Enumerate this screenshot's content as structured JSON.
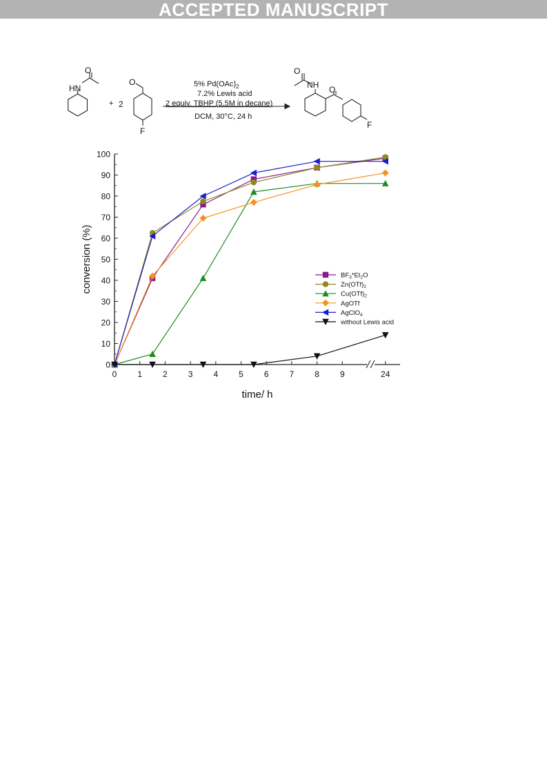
{
  "banner": {
    "text": "ACCEPTED MANUSCRIPT"
  },
  "scheme": {
    "plus": "+",
    "coefficient": "2",
    "reactant1": {
      "nh": "HN",
      "o": "O"
    },
    "reactant2": {
      "o": "O",
      "f": "F"
    },
    "product": {
      "nh": "NH",
      "o1": "O",
      "o2": "O",
      "f": "F"
    },
    "conditions": {
      "catalyst_main": "5% Pd(OAc)",
      "catalyst_sub": "2",
      "lewis_acid": "7.2% Lewis acid",
      "oxidant": "2 equiv. TBHP (5.5M in decane)",
      "solvent_temp": "DCM, 30°C, 24 h"
    }
  },
  "chart_data": {
    "type": "line",
    "xlabel": "time/ h",
    "ylabel": "conversion (%)",
    "ylim": [
      0,
      100
    ],
    "yticks": [
      0,
      10,
      20,
      30,
      40,
      50,
      60,
      70,
      80,
      90,
      100
    ],
    "xticks": [
      {
        "v": 0,
        "label": "0"
      },
      {
        "v": 1,
        "label": "1"
      },
      {
        "v": 2,
        "label": "2"
      },
      {
        "v": 3,
        "label": "3"
      },
      {
        "v": 4,
        "label": "4"
      },
      {
        "v": 5,
        "label": "5"
      },
      {
        "v": 6,
        "label": "6"
      },
      {
        "v": 7,
        "label": "7"
      },
      {
        "v": 8,
        "label": "8"
      },
      {
        "v": 9,
        "label": "9"
      },
      {
        "v": 24,
        "label": "24"
      }
    ],
    "axis_break": "between 9 and 24",
    "legend_position": "right",
    "series": [
      {
        "name": "BF3*Et2O",
        "name_parts": [
          [
            "BF",
            ""
          ],
          [
            "3",
            "sub"
          ],
          [
            "*Et",
            ""
          ],
          [
            "2",
            "sub"
          ],
          [
            "O",
            ""
          ]
        ],
        "color": "#8b1a89",
        "marker": "square",
        "x": [
          0,
          1.5,
          3.5,
          5.5,
          8,
          24
        ],
        "y": [
          0,
          41,
          76,
          88,
          93.5,
          98
        ]
      },
      {
        "name": "Zn(OTf)2",
        "name_parts": [
          [
            "Zn(OTf)",
            ""
          ],
          [
            "2",
            "sub"
          ]
        ],
        "color": "#8a8a1e",
        "marker": "circle",
        "x": [
          0,
          1.5,
          3.5,
          5.5,
          8,
          24
        ],
        "y": [
          0,
          62.5,
          77.5,
          86.5,
          93.5,
          98.5
        ]
      },
      {
        "name": "Cu(OTf)2",
        "name_parts": [
          [
            "Cu(OTf)",
            ""
          ],
          [
            "2",
            "sub"
          ]
        ],
        "color": "#1e8c1e",
        "marker": "triangle-up",
        "x": [
          0,
          1.5,
          3.5,
          5.5,
          8,
          24
        ],
        "y": [
          0,
          5,
          41,
          82,
          86,
          86
        ]
      },
      {
        "name": "AgOTf",
        "name_parts": [
          [
            "AgOTf",
            ""
          ]
        ],
        "color": "#f5921e",
        "marker": "diamond",
        "x": [
          0,
          1.5,
          3.5,
          5.5,
          8,
          24
        ],
        "y": [
          0,
          42,
          69.5,
          77,
          85.5,
          91
        ]
      },
      {
        "name": "AgClO4",
        "name_parts": [
          [
            "AgClO",
            ""
          ],
          [
            "4",
            "sub"
          ]
        ],
        "color": "#1c1ccc",
        "marker": "triangle-left",
        "x": [
          0,
          1.5,
          3.5,
          5.5,
          8,
          24
        ],
        "y": [
          0,
          61,
          80,
          91,
          96.5,
          96.5
        ]
      },
      {
        "name": "without Lewis acid",
        "name_parts": [
          [
            "without Lewis acid",
            ""
          ]
        ],
        "color": "#111111",
        "marker": "triangle-down",
        "x": [
          0,
          1.5,
          3.5,
          5.5,
          8,
          24
        ],
        "y": [
          0,
          0,
          0,
          0,
          4,
          14
        ]
      }
    ]
  }
}
